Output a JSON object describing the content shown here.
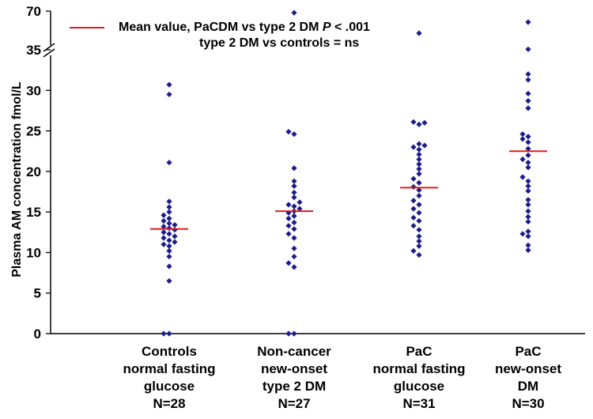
{
  "chart_data": {
    "type": "scatter",
    "ylabel": "Plasma AM concentration fmol/L",
    "ylim": [
      0,
      35
    ],
    "yticks": [
      0,
      5,
      10,
      15,
      20,
      25,
      30,
      35
    ],
    "axis_break": {
      "after": 35,
      "top_tick": 70
    },
    "legend": {
      "mean_label": "Mean value, PaCDM vs type 2 DM",
      "p_symbol": "P",
      "p_value": "< .001",
      "line2": "type 2 DM vs controls = ns",
      "mean_color": "#e31b1b"
    },
    "point_color": "#1c1c8c",
    "groups": [
      {
        "label_lines": [
          "Controls",
          "normal fasting",
          "glucose"
        ],
        "n_label": "N=28",
        "mean": 12.9,
        "values": [
          0,
          0,
          6.5,
          8.3,
          9.5,
          10.2,
          10.8,
          11.0,
          11.3,
          11.5,
          11.8,
          12.0,
          12.3,
          12.5,
          12.8,
          13.0,
          13.2,
          13.4,
          13.6,
          13.9,
          14.2,
          14.6,
          15.0,
          15.6,
          16.3,
          21.1,
          29.5,
          30.7
        ]
      },
      {
        "label_lines": [
          "Non-cancer",
          "new-onset",
          "type 2 DM"
        ],
        "n_label": "N=27",
        "mean": 15.1,
        "values": [
          0,
          0,
          8.2,
          8.7,
          9.5,
          10.5,
          11.8,
          12.3,
          12.9,
          13.3,
          13.7,
          14.2,
          14.5,
          14.9,
          15.1,
          15.4,
          15.7,
          15.9,
          16.2,
          16.8,
          17.4,
          18.2,
          18.8,
          20.4,
          24.6,
          24.9,
          68.5
        ]
      },
      {
        "label_lines": [
          "PaC",
          "normal fasting",
          "glucose"
        ],
        "n_label": "N=31",
        "mean": 18.0,
        "values": [
          9.7,
          10.2,
          10.8,
          11.4,
          12.0,
          12.8,
          13.3,
          13.9,
          14.3,
          14.9,
          15.4,
          15.9,
          16.4,
          17.0,
          17.7,
          18.1,
          18.6,
          19.1,
          19.7,
          20.3,
          20.9,
          21.5,
          22.1,
          22.7,
          23.0,
          23.2,
          23.4,
          25.8,
          26.1,
          26.0,
          50.0
        ]
      },
      {
        "label_lines": [
          "PaC",
          "new-onset",
          "DM"
        ],
        "n_label": "N=30",
        "mean": 22.5,
        "values": [
          10.3,
          10.9,
          12.0,
          12.3,
          12.6,
          13.8,
          14.4,
          15.1,
          15.9,
          16.5,
          17.6,
          18.2,
          18.8,
          19.3,
          20.5,
          21.1,
          21.5,
          22.0,
          22.8,
          23.6,
          24.0,
          24.3,
          24.6,
          27.8,
          28.7,
          29.6,
          31.3,
          32.0,
          35.5,
          60.0
        ]
      }
    ]
  }
}
